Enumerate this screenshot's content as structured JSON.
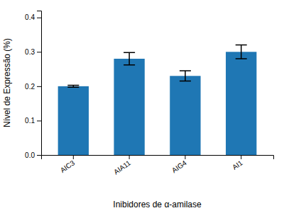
{
  "chart_data": {
    "type": "bar",
    "categories": [
      "AIC3",
      "AIA11",
      "AIG4",
      "AI1"
    ],
    "values": [
      0.2,
      0.28,
      0.23,
      0.3
    ],
    "errors": [
      0.003,
      0.018,
      0.015,
      0.02
    ],
    "xlabel": "Inibidores de α-amilase",
    "ylabel": "Nível de Expressão (%)",
    "ylim": [
      0.0,
      0.42
    ],
    "yticks": [
      {
        "value": 0.0,
        "label": "0.0"
      },
      0.1,
      0.2,
      0.3,
      0.4
    ],
    "grid": false
  }
}
